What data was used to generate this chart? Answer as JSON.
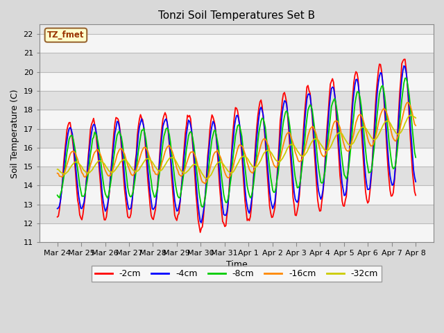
{
  "title": "Tonzi Soil Temperatures Set B",
  "xlabel": "Time",
  "ylabel": "Soil Temperature (C)",
  "ylim": [
    11.0,
    22.5
  ],
  "yticks": [
    11.0,
    12.0,
    13.0,
    14.0,
    15.0,
    16.0,
    17.0,
    18.0,
    19.0,
    20.0,
    21.0,
    22.0
  ],
  "background_color": "#d9d9d9",
  "plot_bg_color": "#e8e8e8",
  "legend_label": "TZ_fmet",
  "legend_box_color": "#ffffcc",
  "legend_box_edge": "#996633",
  "series_colors": [
    "#ff0000",
    "#0000ff",
    "#00cc00",
    "#ff8800",
    "#cccc00"
  ],
  "series_labels": [
    "-2cm",
    "-4cm",
    "-8cm",
    "-16cm",
    "-32cm"
  ],
  "x_tick_labels": [
    "Mar 24",
    "Mar 25",
    "Mar 26",
    "Mar 27",
    "Mar 28",
    "Mar 29",
    "Mar 30",
    "Mar 31",
    "Apr 1",
    "Apr 2",
    "Apr 3",
    "Apr 4",
    "Apr 5",
    "Apr 6",
    "Apr 7",
    "Apr 8"
  ],
  "n_points": 337
}
